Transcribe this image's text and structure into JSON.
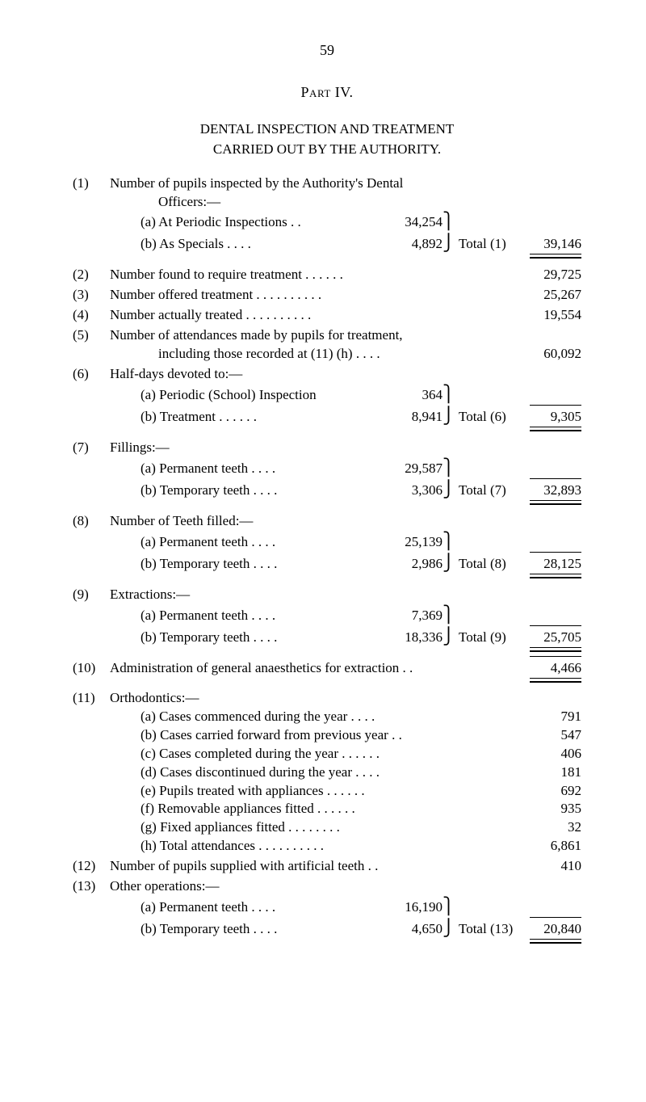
{
  "page_number": "59",
  "part_title": "Part IV.",
  "main_title_1": "DENTAL INSPECTION AND TREATMENT",
  "main_title_2": "CARRIED OUT BY THE AUTHORITY.",
  "items": {
    "i1": {
      "num": "(1)",
      "text": "Number of pupils inspected by the Authority's Dental",
      "sub": "Officers:—",
      "a_label": "(a) At Periodic Inspections   . .",
      "a_val": "34,254",
      "b_label": "(b) As Specials               . .       . .",
      "b_val": "4,892",
      "brace_t": "⎫",
      "brace_b": "⎭",
      "total_label": "Total (1)",
      "total_val": "39,146"
    },
    "i2": {
      "num": "(2)",
      "text": "Number found to require treatment        . .       . .       . .",
      "val": "29,725"
    },
    "i3": {
      "num": "(3)",
      "text": "Number offered treatment  . .       . .       . .       . .       . .",
      "val": "25,267"
    },
    "i4": {
      "num": "(4)",
      "text": "Number actually treated      . .       . .       . .       . .       . .",
      "val": "19,554"
    },
    "i5": {
      "num": "(5)",
      "text1": "Number of attendances made by pupils for treatment,",
      "text2": "including those recorded at (11) (h)           . .       . .",
      "val": "60,092"
    },
    "i6": {
      "num": "(6)",
      "text": "Half-days devoted to:—",
      "a_label": "(a) Periodic (School) Inspection",
      "a_val": "364",
      "b_label": "(b) Treatment  . .       . .       . .",
      "b_val": "8,941",
      "brace_t": "⎫",
      "brace_b": "⎭",
      "total_label": "Total (6)",
      "total_val": "9,305"
    },
    "i7": {
      "num": "(7)",
      "text": "Fillings:—",
      "a_label": "(a) Permanent teeth    . .       . .",
      "a_val": "29,587",
      "b_label": "(b) Temporary teeth   . .       . .",
      "b_val": "3,306",
      "brace_t": "⎫",
      "brace_b": "⎭",
      "total_label": "Total (7)",
      "total_val": "32,893"
    },
    "i8": {
      "num": "(8)",
      "text": "Number of Teeth filled:—",
      "a_label": "(a) Permanent teeth    . .       . .",
      "a_val": "25,139",
      "b_label": "(b) Temporary teeth   . .       . .",
      "b_val": "2,986",
      "brace_t": "⎫",
      "brace_b": "⎭",
      "total_label": "Total (8)",
      "total_val": "28,125"
    },
    "i9": {
      "num": "(9)",
      "text": "Extractions:—",
      "a_label": "(a) Permanent teeth    . .       . .",
      "a_val": "7,369",
      "b_label": "(b) Temporary teeth   . .       . .",
      "b_val": "18,336",
      "brace_t": "⎫",
      "brace_b": "⎭",
      "total_label": "Total (9)",
      "total_val": "25,705"
    },
    "i10": {
      "num": "(10)",
      "text": "Administration of general anaesthetics for extraction  . .",
      "val": "4,466"
    },
    "i11": {
      "num": "(11)",
      "text": "Orthodontics:—",
      "rows": [
        {
          "label": "(a) Cases commenced during the year          . .       . .",
          "val": "791"
        },
        {
          "label": "(b) Cases carried forward from previous year        . .",
          "val": "547"
        },
        {
          "label": "(c) Cases completed during the year  . .       . .       . .",
          "val": "406"
        },
        {
          "label": "(d) Cases discontinued during the year         . .       . .",
          "val": "181"
        },
        {
          "label": "(e) Pupils treated with appliances       . .       . .       . .",
          "val": "692"
        },
        {
          "label": "(f) Removable appliances fitted          . .       . .       . .",
          "val": "935"
        },
        {
          "label": "(g) Fixed appliances fitted         . .       . .       . .       . .",
          "val": "32"
        },
        {
          "label": "(h) Total attendances      . .       . .       . .       . .       . .",
          "val": "6,861"
        }
      ]
    },
    "i12": {
      "num": "(12)",
      "text": "Number of pupils supplied with artificial teeth             . .",
      "val": "410"
    },
    "i13": {
      "num": "(13)",
      "text": "Other operations:—",
      "a_label": "(a) Permanent teeth    . .       . .",
      "a_val": "16,190",
      "b_label": "(b) Temporary teeth   . .       . .",
      "b_val": "4,650",
      "brace_t": "⎫",
      "brace_b": "⎭",
      "total_label": "Total (13)",
      "total_val": "20,840"
    }
  }
}
